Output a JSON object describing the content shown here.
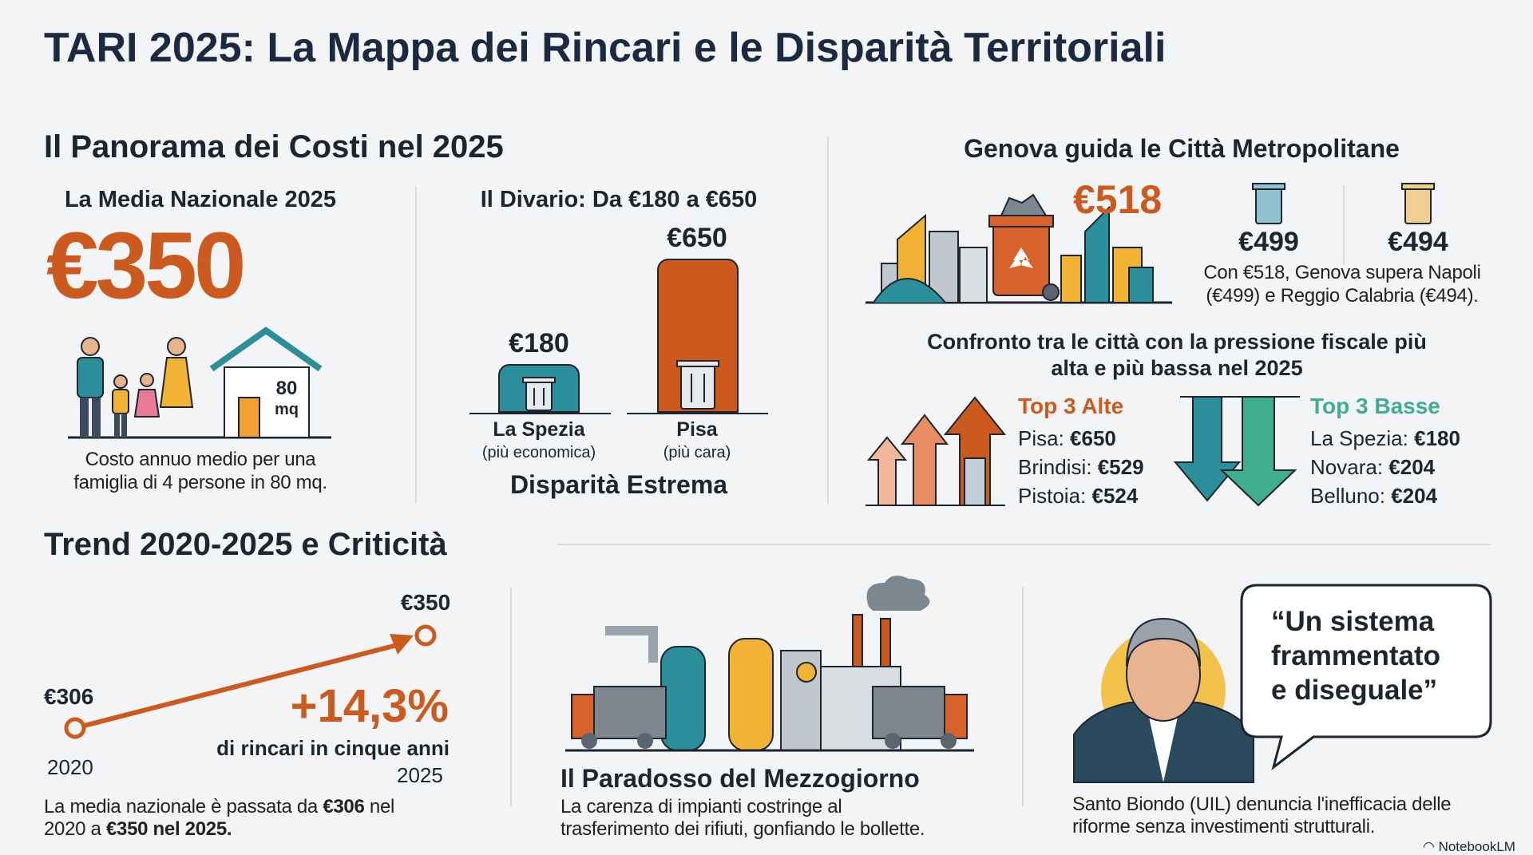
{
  "title": "TARI 2025: La Mappa dei Rincari e le Disparità Territoriali",
  "panorama": {
    "heading": "Il Panorama dei Costi nel 2025",
    "media": {
      "label": "La Media Nazionale 2025",
      "value": "€350",
      "house_size": "80",
      "house_unit": "mq",
      "caption_line1": "Costo annuo medio per una",
      "caption_line2": "famiglia di 4 persone in 80 mq."
    },
    "divario": {
      "label": "Il Divario: Da €180 a €650",
      "bars": [
        {
          "value": 180,
          "value_label": "€180",
          "city": "La Spezia",
          "note": "(più economica)",
          "color": "#2a8f9a"
        },
        {
          "value": 650,
          "value_label": "€650",
          "city": "Pisa",
          "note": "(più cara)",
          "color": "#cc5a1e"
        }
      ],
      "footer": "Disparità Estrema"
    }
  },
  "genova": {
    "heading": "Genova guida le Città Metropolitane",
    "value": "€518",
    "napoli_value": "€499",
    "reggio_value": "€494",
    "caption_line1": "Con €518, Genova supera Napoli",
    "caption_line2": "(€499) e Reggio Calabria (€494)."
  },
  "confronto": {
    "heading_line1": "Confronto tra le città con la pressione fiscale più",
    "heading_line2": "alta e più bassa nel 2025",
    "alte": {
      "title": "Top 3 Alte",
      "items": [
        {
          "city": "Pisa:",
          "value": "€650"
        },
        {
          "city": "Brindisi:",
          "value": "€529"
        },
        {
          "city": "Pistoia:",
          "value": "€524"
        }
      ]
    },
    "basse": {
      "title": "Top 3 Basse",
      "items": [
        {
          "city": "La Spezia:",
          "value": "€180"
        },
        {
          "city": "Novara:",
          "value": "€204"
        },
        {
          "city": "Belluno:",
          "value": "€204"
        }
      ]
    }
  },
  "trend": {
    "heading": "Trend 2020-2025 e Criticità",
    "start_value": "€306",
    "end_value": "€350",
    "start_year": "2020",
    "end_year": "2025",
    "change": "+14,3%",
    "change_label": "di rincari in cinque anni",
    "caption_pre": "La media nazionale è passata da ",
    "caption_bold1": "€306",
    "caption_mid": " nel",
    "caption_line2_pre": "2020 a ",
    "caption_bold2": "€350 nel 2025."
  },
  "mezzogiorno": {
    "heading": "Il Paradosso del Mezzogiorno",
    "caption_line1": "La carenza di impianti costringe al",
    "caption_line2": "trasferimento dei rifiuti, gonfiando le bollette."
  },
  "quote": {
    "line1": "“Un sistema",
    "line2": "frammentato",
    "line3": "e diseguale”",
    "caption_line1": "Santo Biondo (UIL) denuncia l'inefficacia delle",
    "caption_line2": "riforme senza investimenti strutturali."
  },
  "watermark": "NotebookLM",
  "colors": {
    "accent": "#cc5a1e",
    "teal": "#2a8f9a",
    "green": "#3fae8f",
    "navy": "#1b2a41",
    "yellow": "#f2b233"
  }
}
